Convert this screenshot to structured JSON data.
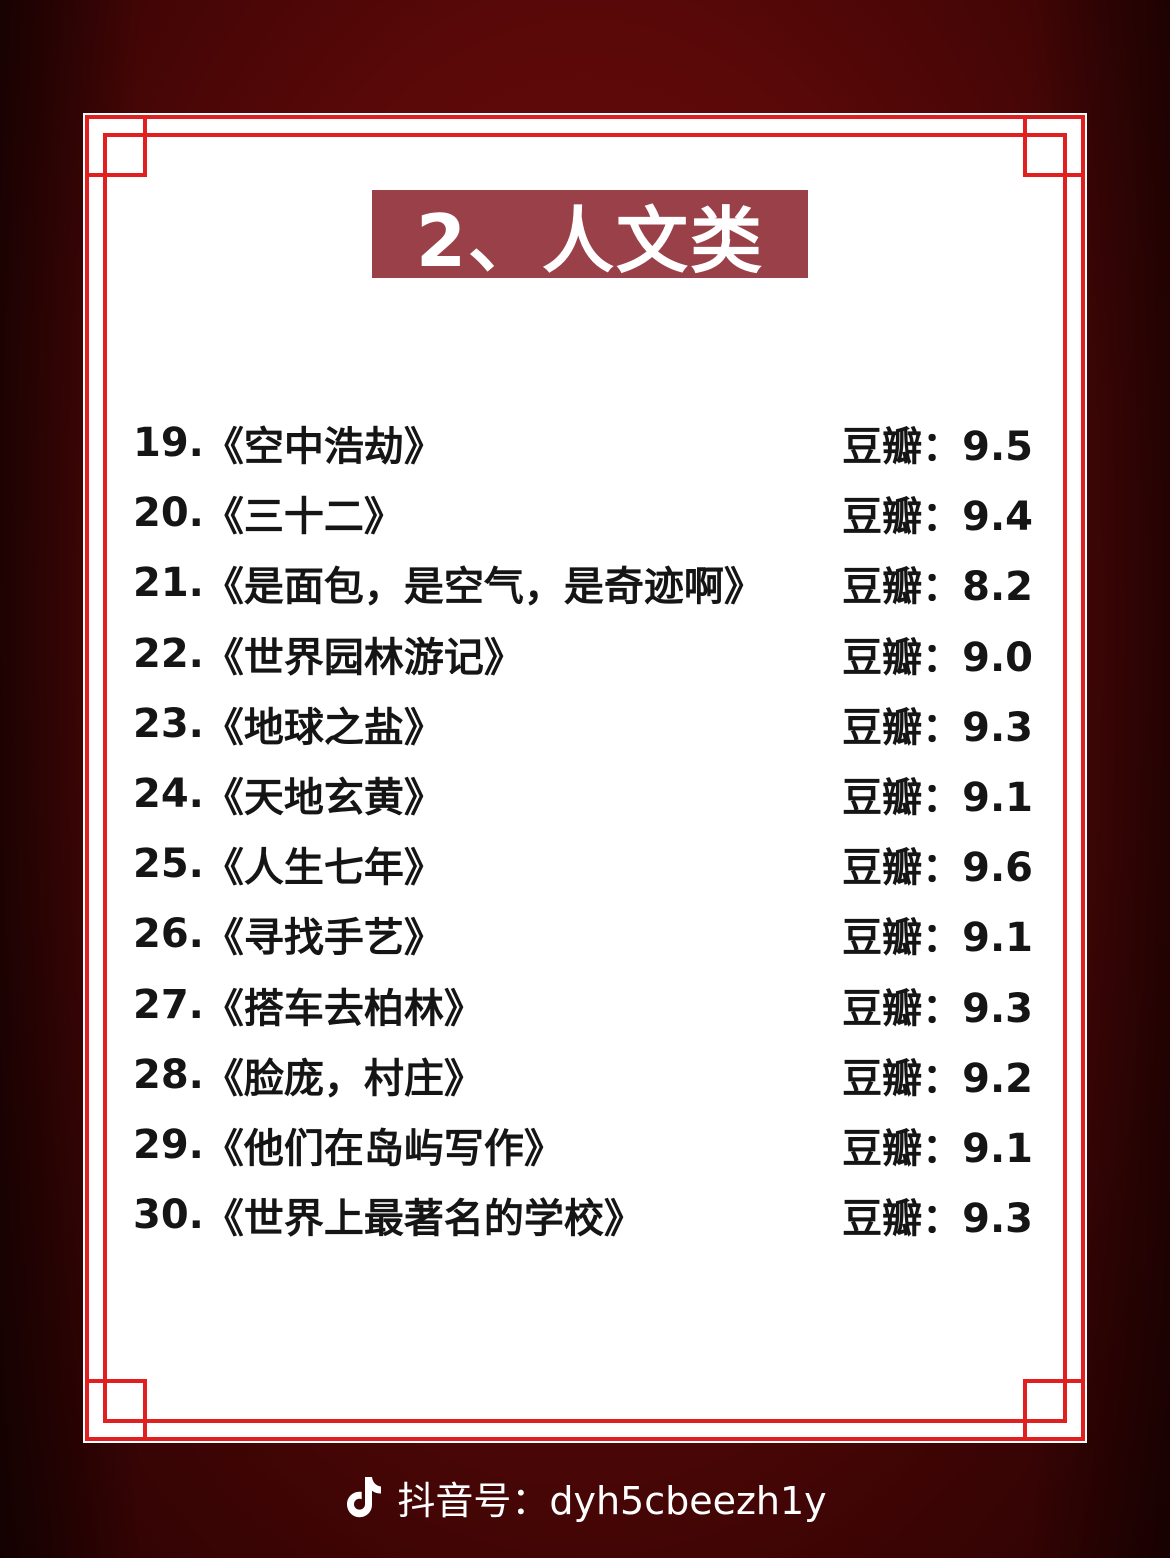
{
  "header": {
    "title": "2、人文类"
  },
  "items": [
    {
      "num": "19.",
      "title": "《空中浩劫》",
      "rating": "豆瓣：9.5"
    },
    {
      "num": "20.",
      "title": "《三十二》",
      "rating": "豆瓣：9.4"
    },
    {
      "num": "21.",
      "title": "《是面包，是空气，是奇迹啊》",
      "rating": "豆瓣：8.2"
    },
    {
      "num": "22.",
      "title": "《世界园林游记》",
      "rating": "豆瓣：9.0"
    },
    {
      "num": "23.",
      "title": "《地球之盐》",
      "rating": "豆瓣：9.3"
    },
    {
      "num": "24.",
      "title": "《天地玄黄》",
      "rating": "豆瓣：9.1"
    },
    {
      "num": "25.",
      "title": "《人生七年》",
      "rating": "豆瓣：9.6"
    },
    {
      "num": "26.",
      "title": "《寻找手艺》",
      "rating": "豆瓣：9.1"
    },
    {
      "num": "27.",
      "title": "《搭车去柏林》",
      "rating": "豆瓣：9.3"
    },
    {
      "num": "28.",
      "title": "《脸庞，村庄》",
      "rating": "豆瓣：9.2"
    },
    {
      "num": "29.",
      "title": "《他们在岛屿写作》",
      "rating": "豆瓣：9.1"
    },
    {
      "num": "30.",
      "title": "《世界上最著名的学校》",
      "rating": "豆瓣：9.3"
    }
  ],
  "footer": {
    "icon": "douyin-logo-icon",
    "text": "抖音号：dyh5cbeezh1y"
  },
  "colors": {
    "frame": "#e02020",
    "title_bg": "#9a4048",
    "background": "#5a0808"
  }
}
